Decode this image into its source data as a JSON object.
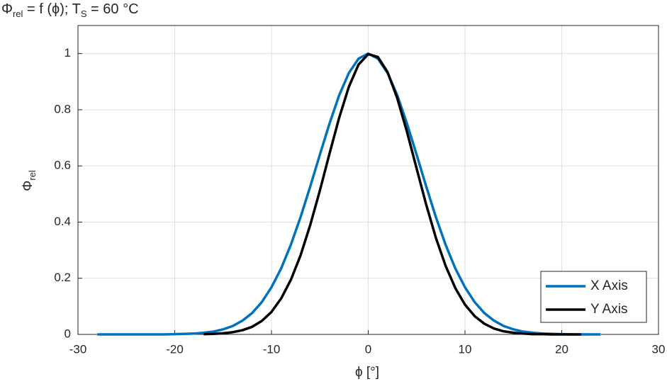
{
  "chart_data": {
    "type": "line",
    "title": [
      "Φ",
      "rel",
      " = f (ϕ); T",
      "S",
      " = 60 °C"
    ],
    "xlabel": "ϕ [°]",
    "ylabel": [
      "Φ",
      "rel"
    ],
    "x": [
      -28,
      -27,
      -26,
      -25,
      -24,
      -23,
      -22,
      -21,
      -20,
      -19,
      -18,
      -17,
      -16,
      -15,
      -14,
      -13,
      -12,
      -11,
      -10,
      -9,
      -8,
      -7,
      -6,
      -5,
      -4,
      -3,
      -2,
      -1,
      0,
      1,
      2,
      3,
      4,
      5,
      6,
      7,
      8,
      9,
      10,
      11,
      12,
      13,
      14,
      15,
      16,
      17,
      18,
      19,
      20,
      21,
      22,
      23,
      24
    ],
    "series": [
      {
        "name": "X Axis",
        "color": "#0072bd",
        "values": [
          0,
          0,
          0,
          0,
          0,
          0,
          0,
          0,
          0.001,
          0.002,
          0.003,
          0.006,
          0.01,
          0.018,
          0.03,
          0.049,
          0.076,
          0.115,
          0.168,
          0.235,
          0.319,
          0.417,
          0.526,
          0.64,
          0.751,
          0.852,
          0.931,
          0.982,
          1,
          0.982,
          0.931,
          0.852,
          0.751,
          0.64,
          0.526,
          0.417,
          0.319,
          0.235,
          0.168,
          0.115,
          0.076,
          0.049,
          0.03,
          0.018,
          0.01,
          0.006,
          0.003,
          0.002,
          0.001,
          0,
          0,
          0,
          0
        ]
      },
      {
        "name": "Y Axis",
        "color": "#000000",
        "values": [
          null,
          null,
          null,
          null,
          null,
          null,
          null,
          null,
          null,
          null,
          null,
          0.001,
          0.002,
          0.004,
          0.008,
          0.015,
          0.027,
          0.048,
          0.08,
          0.128,
          0.194,
          0.281,
          0.389,
          0.512,
          0.644,
          0.772,
          0.882,
          0.961,
          0.998,
          0.988,
          0.934,
          0.841,
          0.722,
          0.591,
          0.461,
          0.343,
          0.244,
          0.165,
          0.106,
          0.065,
          0.038,
          0.021,
          0.011,
          0.006,
          0.003,
          0.001,
          0.001,
          0,
          0,
          0,
          0,
          null,
          null
        ]
      }
    ],
    "xlim": [
      -30,
      30
    ],
    "xticks": [
      -30,
      -20,
      -10,
      0,
      10,
      20,
      30
    ],
    "ylim": [
      0,
      1.1
    ],
    "yticks": [
      0,
      0.2,
      0.4,
      0.6,
      0.8,
      1
    ],
    "grid": true,
    "legend": "lower right"
  }
}
